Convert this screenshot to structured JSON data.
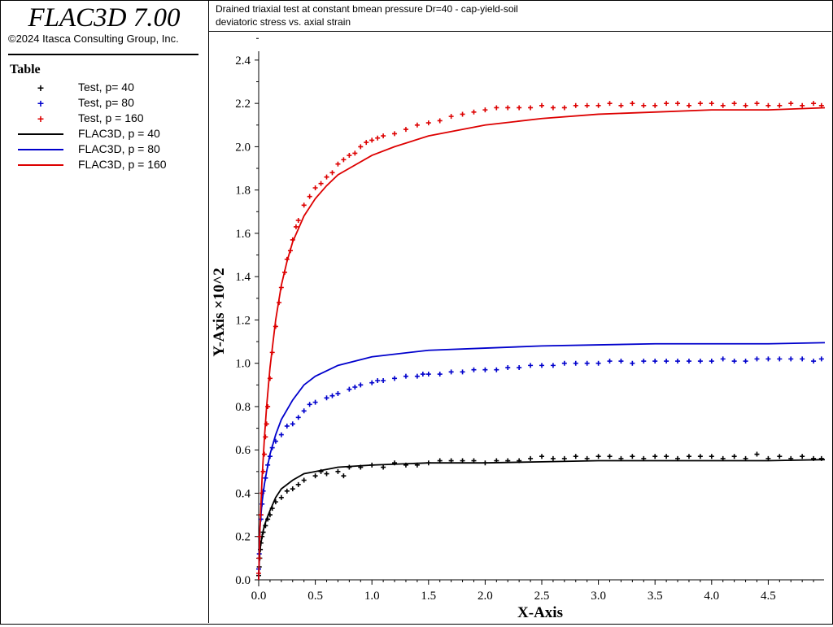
{
  "app": {
    "title": "FLAC3D 7.00",
    "copyright": "©2024 Itasca Consulting Group, Inc."
  },
  "header": {
    "line1": "Drained triaxial test at constant bmean pressure Dr=40 - cap-yield-soil",
    "line2": "deviatoric stress vs. axial strain"
  },
  "legend": {
    "title": "Table",
    "items": [
      {
        "label": "Test, p= 40",
        "kind": "marker",
        "color": "#000000"
      },
      {
        "label": "Test, p= 80",
        "kind": "marker",
        "color": "#0000cc"
      },
      {
        "label": "Test, p = 160",
        "kind": "marker",
        "color": "#dd0000"
      },
      {
        "label": "FLAC3D, p = 40",
        "kind": "line",
        "color": "#000000"
      },
      {
        "label": "FLAC3D, p = 80",
        "kind": "line",
        "color": "#0000cc"
      },
      {
        "label": "FLAC3D, p = 160",
        "kind": "line",
        "color": "#dd0000"
      }
    ]
  },
  "chart_data": {
    "type": "scatter",
    "xlabel": "X-Axis",
    "ylabel": "Y-Axis ×10^2",
    "xlim": [
      0,
      5.0
    ],
    "ylim": [
      0,
      2.5
    ],
    "x_ticks": [
      "0.0",
      "0.5",
      "1.0",
      "1.5",
      "2.0",
      "2.5",
      "3.0",
      "3.5",
      "4.0",
      "4.5"
    ],
    "y_ticks": [
      "0.0",
      "0.2",
      "0.4",
      "0.6",
      "0.8",
      "1.0",
      "1.2",
      "1.4",
      "1.6",
      "1.8",
      "2.0",
      "2.2",
      "2.4"
    ],
    "grid": false,
    "series": [
      {
        "name": "Test, p= 40",
        "kind": "marker",
        "color": "#000000",
        "x": [
          0.0,
          0.005,
          0.01,
          0.015,
          0.02,
          0.03,
          0.04,
          0.06,
          0.08,
          0.1,
          0.12,
          0.15,
          0.2,
          0.25,
          0.3,
          0.35,
          0.4,
          0.5,
          0.55,
          0.6,
          0.7,
          0.75,
          0.8,
          0.9,
          1.0,
          1.1,
          1.2,
          1.3,
          1.4,
          1.5,
          1.6,
          1.7,
          1.8,
          1.9,
          2.0,
          2.1,
          2.2,
          2.3,
          2.4,
          2.5,
          2.6,
          2.7,
          2.8,
          2.9,
          3.0,
          3.1,
          3.2,
          3.3,
          3.4,
          3.5,
          3.6,
          3.7,
          3.8,
          3.9,
          4.0,
          4.1,
          4.2,
          4.3,
          4.4,
          4.5,
          4.6,
          4.7,
          4.8,
          4.9,
          4.97
        ],
        "y": [
          0.02,
          0.06,
          0.1,
          0.14,
          0.17,
          0.2,
          0.22,
          0.25,
          0.28,
          0.3,
          0.33,
          0.36,
          0.38,
          0.41,
          0.42,
          0.44,
          0.46,
          0.48,
          0.5,
          0.49,
          0.5,
          0.48,
          0.52,
          0.52,
          0.53,
          0.52,
          0.54,
          0.53,
          0.53,
          0.54,
          0.55,
          0.55,
          0.55,
          0.55,
          0.54,
          0.55,
          0.55,
          0.55,
          0.56,
          0.57,
          0.56,
          0.56,
          0.57,
          0.56,
          0.57,
          0.57,
          0.56,
          0.57,
          0.56,
          0.57,
          0.57,
          0.56,
          0.57,
          0.57,
          0.57,
          0.56,
          0.57,
          0.56,
          0.58,
          0.56,
          0.57,
          0.56,
          0.57,
          0.56,
          0.56
        ]
      },
      {
        "name": "Test, p= 80",
        "kind": "marker",
        "color": "#0000cc",
        "x": [
          0.0,
          0.005,
          0.01,
          0.02,
          0.03,
          0.04,
          0.06,
          0.08,
          0.1,
          0.12,
          0.15,
          0.2,
          0.25,
          0.3,
          0.35,
          0.4,
          0.45,
          0.5,
          0.6,
          0.65,
          0.7,
          0.8,
          0.85,
          0.9,
          1.0,
          1.05,
          1.1,
          1.2,
          1.3,
          1.4,
          1.45,
          1.5,
          1.6,
          1.7,
          1.8,
          1.9,
          2.0,
          2.1,
          2.2,
          2.3,
          2.4,
          2.5,
          2.6,
          2.7,
          2.8,
          2.9,
          3.0,
          3.1,
          3.2,
          3.3,
          3.4,
          3.5,
          3.6,
          3.7,
          3.8,
          3.9,
          4.0,
          4.1,
          4.2,
          4.3,
          4.4,
          4.5,
          4.6,
          4.7,
          4.8,
          4.9,
          4.97
        ],
        "y": [
          0.05,
          0.12,
          0.2,
          0.28,
          0.35,
          0.41,
          0.47,
          0.53,
          0.57,
          0.61,
          0.64,
          0.67,
          0.71,
          0.72,
          0.75,
          0.78,
          0.81,
          0.82,
          0.84,
          0.85,
          0.86,
          0.88,
          0.89,
          0.9,
          0.91,
          0.92,
          0.92,
          0.93,
          0.94,
          0.94,
          0.95,
          0.95,
          0.95,
          0.96,
          0.96,
          0.97,
          0.97,
          0.97,
          0.98,
          0.98,
          0.99,
          0.99,
          0.99,
          1.0,
          1.0,
          1.0,
          1.0,
          1.01,
          1.01,
          1.0,
          1.01,
          1.01,
          1.01,
          1.01,
          1.01,
          1.01,
          1.01,
          1.02,
          1.01,
          1.01,
          1.02,
          1.02,
          1.02,
          1.02,
          1.02,
          1.01,
          1.02
        ]
      },
      {
        "name": "Test, p = 160",
        "kind": "marker",
        "color": "#dd0000",
        "x": [
          0.0,
          0.005,
          0.01,
          0.02,
          0.03,
          0.04,
          0.05,
          0.06,
          0.07,
          0.08,
          0.1,
          0.12,
          0.15,
          0.18,
          0.2,
          0.23,
          0.25,
          0.28,
          0.3,
          0.33,
          0.35,
          0.4,
          0.45,
          0.5,
          0.55,
          0.6,
          0.65,
          0.7,
          0.75,
          0.8,
          0.85,
          0.9,
          0.95,
          1.0,
          1.05,
          1.1,
          1.2,
          1.3,
          1.4,
          1.5,
          1.6,
          1.7,
          1.8,
          1.9,
          2.0,
          2.1,
          2.2,
          2.3,
          2.4,
          2.5,
          2.6,
          2.7,
          2.8,
          2.9,
          3.0,
          3.1,
          3.2,
          3.3,
          3.4,
          3.5,
          3.6,
          3.7,
          3.8,
          3.9,
          4.0,
          4.1,
          4.2,
          4.3,
          4.4,
          4.5,
          4.6,
          4.7,
          4.8,
          4.9,
          4.97
        ],
        "y": [
          0.03,
          0.1,
          0.2,
          0.3,
          0.4,
          0.5,
          0.58,
          0.66,
          0.72,
          0.8,
          0.93,
          1.05,
          1.17,
          1.28,
          1.35,
          1.42,
          1.48,
          1.52,
          1.57,
          1.63,
          1.66,
          1.73,
          1.77,
          1.81,
          1.83,
          1.86,
          1.88,
          1.92,
          1.94,
          1.96,
          1.97,
          2.0,
          2.02,
          2.03,
          2.04,
          2.05,
          2.06,
          2.08,
          2.1,
          2.11,
          2.12,
          2.14,
          2.15,
          2.16,
          2.17,
          2.18,
          2.18,
          2.18,
          2.18,
          2.19,
          2.18,
          2.18,
          2.19,
          2.19,
          2.19,
          2.2,
          2.19,
          2.2,
          2.19,
          2.19,
          2.2,
          2.2,
          2.19,
          2.2,
          2.2,
          2.19,
          2.2,
          2.19,
          2.2,
          2.19,
          2.19,
          2.2,
          2.19,
          2.2,
          2.19
        ]
      },
      {
        "name": "FLAC3D, p = 40",
        "kind": "line",
        "color": "#000000",
        "x": [
          0.0,
          0.005,
          0.01,
          0.02,
          0.03,
          0.05,
          0.07,
          0.1,
          0.15,
          0.2,
          0.3,
          0.4,
          0.5,
          0.7,
          1.0,
          1.5,
          2.0,
          2.5,
          3.0,
          3.5,
          4.0,
          4.5,
          5.0
        ],
        "y": [
          0.0,
          0.08,
          0.13,
          0.17,
          0.2,
          0.25,
          0.28,
          0.32,
          0.38,
          0.42,
          0.46,
          0.49,
          0.5,
          0.52,
          0.53,
          0.54,
          0.54,
          0.545,
          0.55,
          0.55,
          0.55,
          0.55,
          0.555
        ]
      },
      {
        "name": "FLAC3D, p = 80",
        "kind": "line",
        "color": "#0000cc",
        "x": [
          0.0,
          0.005,
          0.01,
          0.02,
          0.03,
          0.05,
          0.07,
          0.1,
          0.15,
          0.2,
          0.3,
          0.4,
          0.5,
          0.7,
          1.0,
          1.5,
          2.0,
          2.5,
          3.0,
          3.5,
          4.0,
          4.5,
          5.0
        ],
        "y": [
          0.0,
          0.13,
          0.23,
          0.3,
          0.36,
          0.44,
          0.5,
          0.58,
          0.67,
          0.74,
          0.83,
          0.9,
          0.94,
          0.99,
          1.03,
          1.06,
          1.07,
          1.08,
          1.085,
          1.09,
          1.09,
          1.09,
          1.095
        ]
      },
      {
        "name": "FLAC3D, p = 160",
        "kind": "line",
        "color": "#dd0000",
        "x": [
          0.0,
          0.005,
          0.01,
          0.02,
          0.03,
          0.05,
          0.07,
          0.1,
          0.15,
          0.2,
          0.25,
          0.3,
          0.4,
          0.5,
          0.6,
          0.7,
          0.8,
          1.0,
          1.2,
          1.5,
          2.0,
          2.5,
          3.0,
          3.5,
          4.0,
          4.5,
          5.0
        ],
        "y": [
          0.0,
          0.12,
          0.22,
          0.35,
          0.47,
          0.65,
          0.8,
          0.98,
          1.2,
          1.36,
          1.47,
          1.56,
          1.68,
          1.76,
          1.82,
          1.87,
          1.9,
          1.96,
          2.0,
          2.05,
          2.1,
          2.13,
          2.15,
          2.16,
          2.17,
          2.17,
          2.18
        ]
      }
    ]
  }
}
